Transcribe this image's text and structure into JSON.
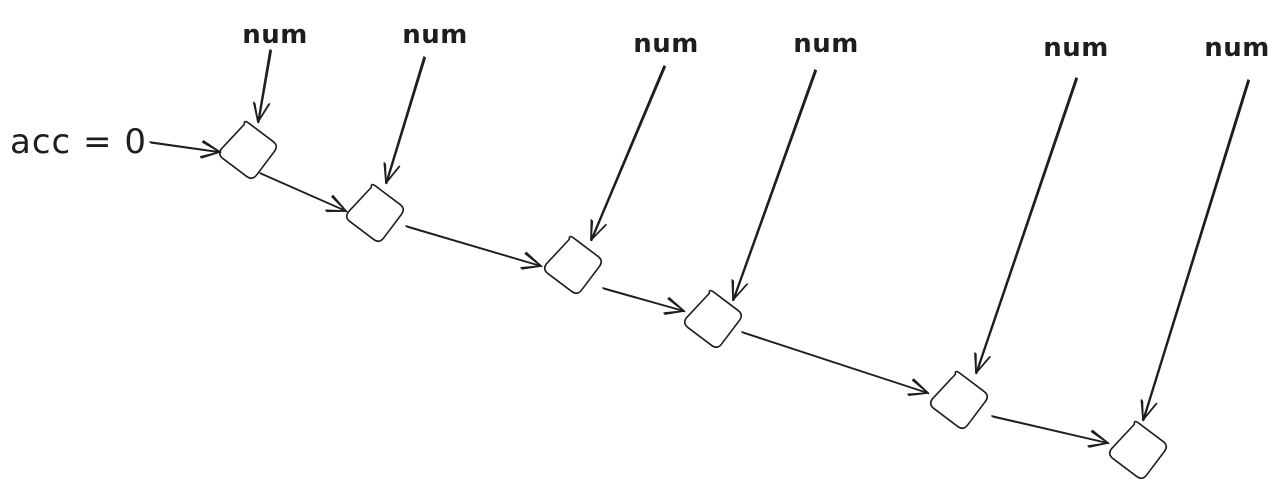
{
  "diagram": {
    "initial_label": "acc = 0",
    "input_label": "num",
    "node_count": 6,
    "stroke_color": "#1e1e1e",
    "background_color": "#ffffff"
  }
}
